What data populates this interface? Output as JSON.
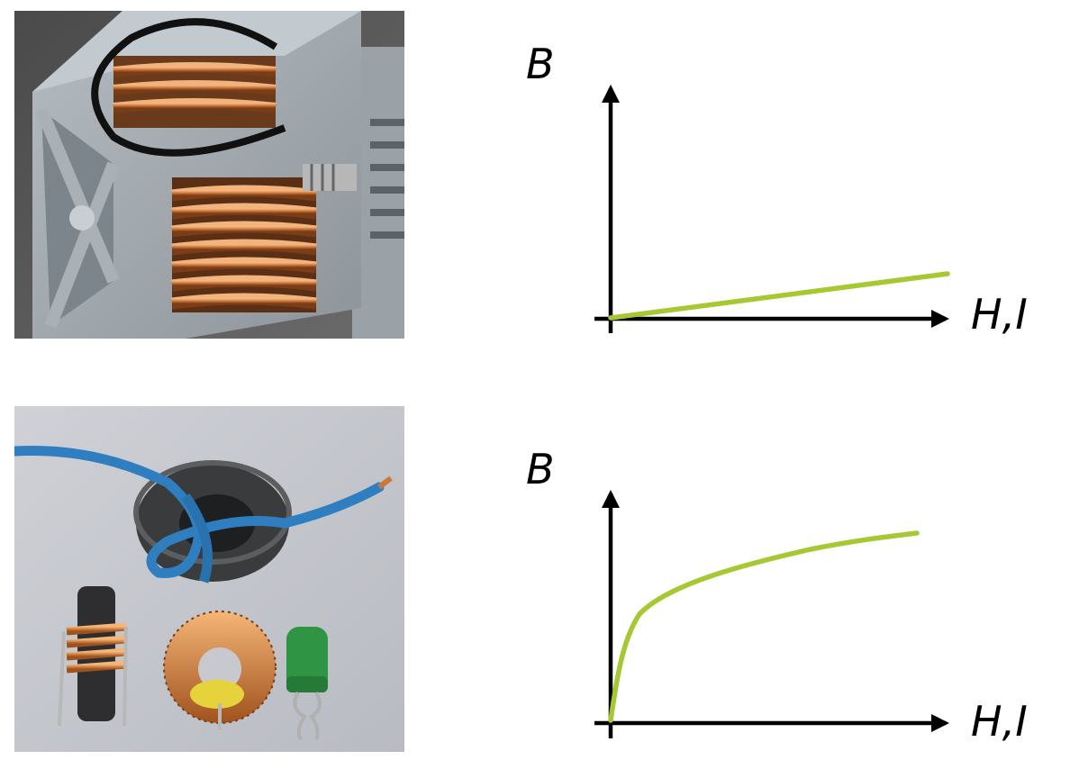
{
  "graphs": [
    {
      "y_label": "B",
      "x_label": "H,I",
      "curve": "linear",
      "curve_color": "#a6c832"
    },
    {
      "y_label": "B",
      "x_label": "H,I",
      "curve": "saturating",
      "curve_color": "#a6c832"
    }
  ],
  "photos": [
    {
      "subject": "air-core-coil-in-gray-housing"
    },
    {
      "subject": "ferrite-core-inductors"
    }
  ],
  "colors": {
    "axis": "#000000",
    "copper": "#c97a3a",
    "housing": "#9ba3a8",
    "wire": "#2f7fc0"
  }
}
